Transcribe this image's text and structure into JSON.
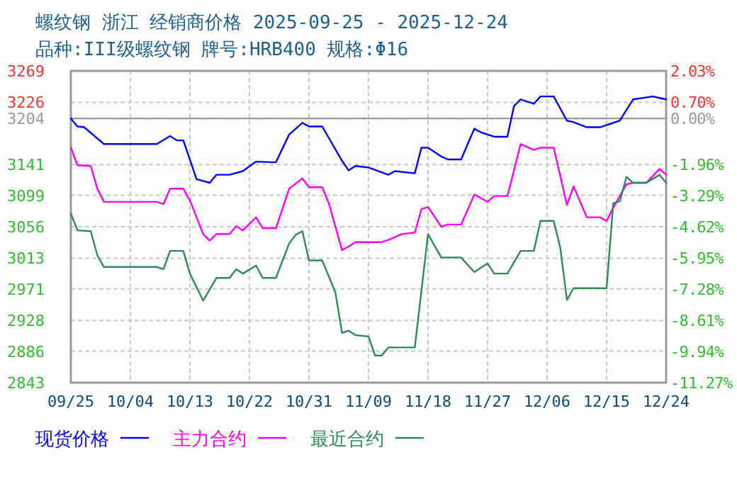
{
  "chart_data": {
    "type": "line",
    "title": "螺纹钢 浙江 经销商价格 2025-09-25 - 2025-12-24",
    "subtitle": "品种:III级螺纹钢 牌号:HRB400 规格:Φ16",
    "xlim": [
      "--09-25",
      "--12-24"
    ],
    "xticks": [
      {
        "value": "--09-25",
        "label": "09/25"
      },
      {
        "value": "--10-04",
        "label": "10/04"
      },
      {
        "value": "--10-13",
        "label": "10/13"
      },
      {
        "value": "--10-22",
        "label": "10/22"
      },
      {
        "value": "--10-31",
        "label": "10/31"
      },
      {
        "value": "--11-09",
        "label": "11/09"
      },
      {
        "value": "--11-18",
        "label": "11/18"
      },
      {
        "value": "--11-27",
        "label": "11/27"
      },
      {
        "value": "--12-06",
        "label": "12/06"
      },
      {
        "value": "--12-15",
        "label": "12/15"
      },
      {
        "value": "--12-24",
        "label": "12/24"
      }
    ],
    "ylim": [
      2843,
      3269
    ],
    "yticks": [
      3269,
      3226,
      3204,
      3141,
      3099,
      3056,
      3013,
      2971,
      2928,
      2886,
      2843
    ],
    "y2lim": [
      -11.27,
      2.03
    ],
    "y2ticks": [
      {
        "value": 2.03,
        "label": "2.03%"
      },
      {
        "value": 0.7,
        "label": "0.70%"
      },
      {
        "value": 0,
        "label": "0.00%"
      },
      {
        "value": -1.96,
        "label": "-1.96%"
      },
      {
        "value": -3.29,
        "label": "-3.29%"
      },
      {
        "value": -4.62,
        "label": "-4.62%"
      },
      {
        "value": -5.95,
        "label": "-5.95%"
      },
      {
        "value": -7.28,
        "label": "-7.28%"
      },
      {
        "value": -8.61,
        "label": "-8.61%"
      },
      {
        "value": -9.94,
        "label": "-9.94%"
      },
      {
        "value": -11.27,
        "label": "-11.27%"
      }
    ],
    "ref_lines": [
      {
        "axis": "y",
        "value": 3204,
        "color": "#999999",
        "line_style": "solid"
      }
    ],
    "grid": true,
    "legend": "bottom",
    "marker": "none",
    "line_style": "solid",
    "series": [
      {
        "name": "现货价格",
        "color": "#0000ff",
        "x": [
          "--09-25",
          "--09-26",
          "--09-27",
          "--09-30",
          "--10-08",
          "--10-10",
          "--10-11",
          "--10-12",
          "--10-14",
          "--10-16",
          "--10-17",
          "--10-19",
          "--10-21",
          "--10-23",
          "--10-26",
          "--10-28",
          "--10-30",
          "--10-31",
          "--11-02",
          "--11-05",
          "--11-06",
          "--11-07",
          "--11-09",
          "--11-12",
          "--11-13",
          "--11-16",
          "--11-17",
          "--11-18",
          "--11-20",
          "--11-21",
          "--11-23",
          "--11-25",
          "--11-26",
          "--11-28",
          "--11-30",
          "--12-01",
          "--12-02",
          "--12-04",
          "--12-05",
          "--12-07",
          "--12-09",
          "--12-10",
          "--12-12",
          "--12-14",
          "--12-17",
          "--12-19",
          "--12-22",
          "--12-23",
          "--12-24"
        ],
        "values": [
          3204,
          3193,
          3192,
          3169,
          3169,
          3180,
          3174,
          3174,
          3121,
          3116,
          3127,
          3127,
          3132,
          3145,
          3144,
          3182,
          3198,
          3193,
          3193,
          3146,
          3133,
          3139,
          3137,
          3127,
          3132,
          3129,
          3164,
          3164,
          3152,
          3148,
          3148,
          3190,
          3185,
          3179,
          3179,
          3221,
          3230,
          3224,
          3234,
          3234,
          3201,
          3199,
          3192,
          3192,
          3201,
          3230,
          3234,
          3232,
          3230
        ]
      },
      {
        "name": "主力合约",
        "color": "#ff00ff",
        "x": [
          "--09-25",
          "--09-26",
          "--09-28",
          "--09-29",
          "--09-30",
          "--10-08",
          "--10-09",
          "--10-10",
          "--10-12",
          "--10-13",
          "--10-15",
          "--10-16",
          "--10-17",
          "--10-19",
          "--10-20",
          "--10-21",
          "--10-23",
          "--10-24",
          "--10-26",
          "--10-28",
          "--10-30",
          "--10-31",
          "--11-02",
          "--11-03",
          "--11-05",
          "--11-06",
          "--11-07",
          "--11-11",
          "--11-12",
          "--11-14",
          "--11-16",
          "--11-17",
          "--11-18",
          "--11-20",
          "--11-21",
          "--11-23",
          "--11-25",
          "--11-27",
          "--11-28",
          "--11-30",
          "--12-02",
          "--12-04",
          "--12-05",
          "--12-07",
          "--12-09",
          "--12-10",
          "--12-12",
          "--12-14",
          "--12-15",
          "--12-16",
          "--12-18",
          "--12-19",
          "--12-21",
          "--12-23",
          "--12-24"
        ],
        "values": [
          3164,
          3140,
          3139,
          3108,
          3090,
          3090,
          3087,
          3108,
          3108,
          3092,
          3046,
          3037,
          3046,
          3046,
          3057,
          3051,
          3069,
          3054,
          3054,
          3108,
          3122,
          3110,
          3110,
          3088,
          3024,
          3029,
          3035,
          3035,
          3038,
          3046,
          3048,
          3080,
          3083,
          3056,
          3059,
          3059,
          3100,
          3090,
          3098,
          3098,
          3169,
          3161,
          3164,
          3164,
          3086,
          3111,
          3069,
          3069,
          3064,
          3082,
          3114,
          3116,
          3116,
          3135,
          3127
        ]
      },
      {
        "name": "最近合约",
        "color": "#2e8b57",
        "x": [
          "--09-25",
          "--09-26",
          "--09-28",
          "--09-29",
          "--09-30",
          "--10-08",
          "--10-09",
          "--10-10",
          "--10-12",
          "--10-13",
          "--10-15",
          "--10-17",
          "--10-19",
          "--10-20",
          "--10-21",
          "--10-23",
          "--10-24",
          "--10-26",
          "--10-28",
          "--10-29",
          "--10-30",
          "--10-31",
          "--11-02",
          "--11-04",
          "--11-05",
          "--11-06",
          "--11-07",
          "--11-09",
          "--11-10",
          "--11-11",
          "--11-12",
          "--11-16",
          "--11-18",
          "--11-20",
          "--11-23",
          "--11-25",
          "--11-27",
          "--11-28",
          "--11-30",
          "--12-02",
          "--12-04",
          "--12-05",
          "--12-07",
          "--12-08",
          "--12-09",
          "--12-10",
          "--12-15",
          "--12-16",
          "--12-17",
          "--12-18",
          "--12-19",
          "--12-21",
          "--12-23",
          "--12-24"
        ],
        "values": [
          3074,
          3051,
          3050,
          3017,
          3001,
          3001,
          2998,
          3023,
          3023,
          2992,
          2955,
          2986,
          2986,
          2998,
          2992,
          3003,
          2986,
          2986,
          3033,
          3045,
          3050,
          3010,
          3010,
          2966,
          2911,
          2914,
          2908,
          2906,
          2880,
          2880,
          2891,
          2891,
          3046,
          3014,
          3014,
          2994,
          3006,
          2992,
          2992,
          3023,
          3023,
          3064,
          3064,
          3027,
          2956,
          2972,
          2972,
          3088,
          3091,
          3124,
          3116,
          3116,
          3127,
          3116
        ]
      }
    ]
  }
}
